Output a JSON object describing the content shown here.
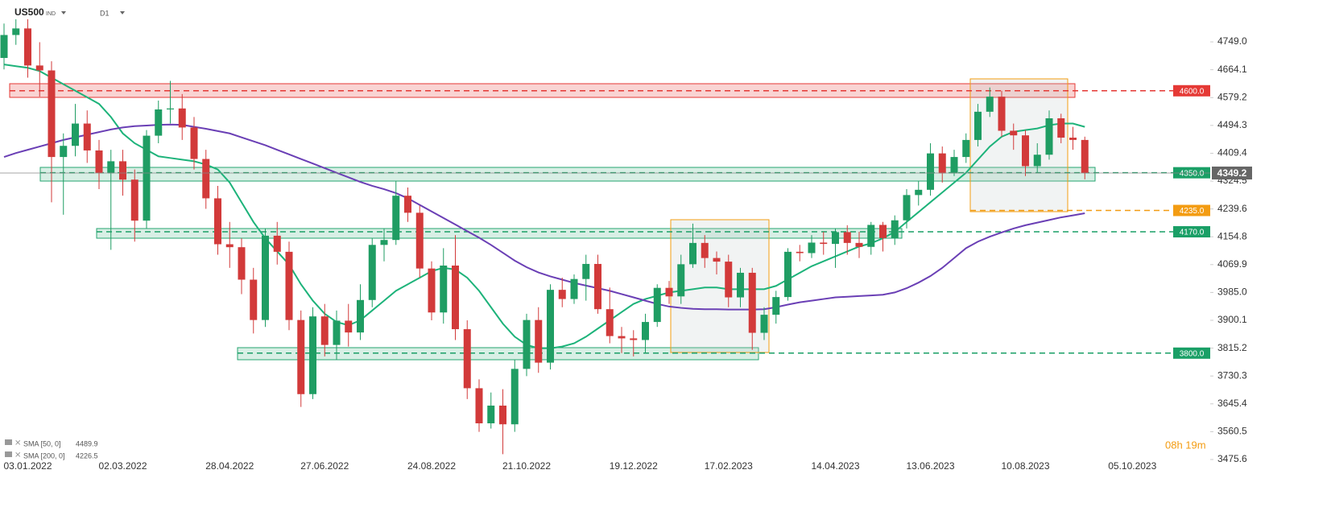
{
  "header": {
    "symbol": "US500",
    "kind": "IND",
    "interval": "D1"
  },
  "timer": "08h 19m",
  "chart_data": {
    "type": "candlestick",
    "categories": [
      null,
      null,
      "03.01.2022",
      null,
      null,
      null,
      null,
      null,
      null,
      null,
      "02.03.2022",
      null,
      null,
      null,
      null,
      null,
      null,
      null,
      null,
      "28.04.2022",
      null,
      null,
      null,
      null,
      null,
      null,
      null,
      "27.06.2022",
      null,
      null,
      null,
      null,
      null,
      null,
      null,
      null,
      "24.08.2022",
      null,
      null,
      null,
      null,
      null,
      null,
      null,
      "21.10.2022",
      null,
      null,
      null,
      null,
      null,
      null,
      null,
      null,
      "19.12.2022",
      null,
      null,
      null,
      null,
      null,
      null,
      null,
      "17.02.2023",
      null,
      null,
      null,
      null,
      null,
      null,
      null,
      null,
      "14.04.2023",
      null,
      null,
      null,
      null,
      null,
      null,
      null,
      "13.06.2023",
      null,
      null,
      null,
      null,
      null,
      null,
      null,
      "10.08.2023",
      null,
      null,
      null,
      null,
      null,
      null,
      null,
      null,
      "05.10.2023"
    ],
    "up_color": "#1f9d63",
    "down_color": "#d23a3a",
    "candles": {
      "open": [
        4700,
        4770,
        4790,
        4677,
        4662,
        4398,
        4432,
        4500,
        4418,
        4349,
        4385,
        4329,
        4204,
        4463,
        4543,
        4546,
        4488,
        4392,
        4272,
        4132,
        4123,
        4024,
        3901,
        4158,
        4109,
        3901,
        3675,
        3912,
        3825,
        3899,
        3863,
        3962,
        4130,
        4145,
        4280,
        4228,
        4058,
        3924,
        4067,
        3873,
        3693,
        3586,
        3640,
        3583,
        3752,
        3901,
        3771,
        3993,
        3965,
        4026,
        4072,
        3934,
        3852,
        3845,
        3840,
        3895,
        3999,
        3973,
        4071,
        4136,
        4090,
        4079,
        3970,
        4045,
        3862,
        3917,
        3971,
        4109,
        4105,
        4137,
        4133,
        4169,
        4136,
        4124,
        4191,
        4151,
        4205,
        4282,
        4298,
        4409,
        4348,
        4398,
        4450,
        4536,
        4582,
        4478,
        4464,
        4370,
        4405,
        4516,
        4457,
        4450,
        null,
        null,
        null,
        null
      ],
      "high": [
        4805,
        4818,
        4818,
        4748,
        4690,
        4470,
        4560,
        4540,
        4450,
        4420,
        4420,
        4360,
        4480,
        4570,
        4630,
        4590,
        4520,
        4420,
        4310,
        4200,
        4150,
        4060,
        4180,
        4200,
        4140,
        3930,
        3940,
        3950,
        3930,
        3950,
        4010,
        4150,
        4180,
        4325,
        4305,
        4250,
        4080,
        4120,
        4160,
        3900,
        3720,
        3680,
        3690,
        3780,
        3920,
        3940,
        4010,
        4030,
        4040,
        4100,
        4100,
        4000,
        3880,
        3870,
        3920,
        4010,
        4020,
        4100,
        4195,
        4160,
        4110,
        4100,
        4060,
        4060,
        3940,
        3990,
        4120,
        4130,
        4160,
        4170,
        4180,
        4190,
        4170,
        4200,
        4200,
        4220,
        4300,
        4325,
        4440,
        4430,
        4420,
        4470,
        4560,
        4610,
        4600,
        4500,
        4480,
        4440,
        4540,
        4530,
        4490,
        4460,
        null,
        null,
        null,
        null
      ],
      "low": [
        4665,
        4740,
        4640,
        4582,
        4260,
        4222,
        4400,
        4380,
        4300,
        4115,
        4280,
        4140,
        4180,
        4440,
        4500,
        4450,
        4360,
        4240,
        4100,
        4060,
        3980,
        3860,
        3880,
        4070,
        3870,
        3636,
        3660,
        3790,
        3780,
        3820,
        3840,
        3940,
        4080,
        4130,
        4200,
        4030,
        3900,
        3890,
        3840,
        3660,
        3560,
        3570,
        3492,
        3560,
        3730,
        3740,
        3750,
        3940,
        3950,
        3960,
        3920,
        3830,
        3800,
        3790,
        3800,
        3880,
        3950,
        3950,
        4060,
        4060,
        4040,
        3940,
        3940,
        3810,
        3840,
        3890,
        3960,
        4080,
        4090,
        4100,
        4060,
        4100,
        4090,
        4100,
        4110,
        4130,
        4180,
        4250,
        4280,
        4320,
        4340,
        4380,
        4430,
        4520,
        4460,
        4420,
        4340,
        4350,
        4390,
        4440,
        4420,
        4330,
        null,
        null,
        null,
        null
      ],
      "close": [
        4770,
        4790,
        4677,
        4662,
        4398,
        4432,
        4500,
        4418,
        4349,
        4385,
        4329,
        4204,
        4463,
        4543,
        4546,
        4488,
        4392,
        4272,
        4132,
        4123,
        4024,
        3901,
        4158,
        4109,
        3901,
        3675,
        3912,
        3825,
        3899,
        3863,
        3962,
        4130,
        4145,
        4280,
        4228,
        4058,
        3924,
        4067,
        3873,
        3693,
        3586,
        3640,
        3583,
        3752,
        3901,
        3771,
        3993,
        3965,
        4026,
        4072,
        3934,
        3852,
        3845,
        3840,
        3895,
        3999,
        3973,
        4071,
        4136,
        4090,
        4079,
        3970,
        4045,
        3862,
        3917,
        3971,
        4109,
        4105,
        4137,
        4133,
        4169,
        4136,
        4124,
        4191,
        4151,
        4205,
        4282,
        4298,
        4409,
        4348,
        4398,
        4450,
        4536,
        4582,
        4478,
        4464,
        4370,
        4405,
        4516,
        4457,
        4450,
        4349.2,
        null,
        null,
        null,
        null
      ]
    },
    "series": [
      {
        "name": "SMA [50, 0]",
        "color": "#1db37a",
        "values": [
          4680,
          4675,
          4670,
          4660,
          4640,
          4620,
          4600,
          4580,
          4560,
          4520,
          4470,
          4440,
          4420,
          4400,
          4395,
          4390,
          4385,
          4375,
          4360,
          4320,
          4260,
          4200,
          4150,
          4110,
          4070,
          4010,
          3960,
          3920,
          3895,
          3885,
          3900,
          3930,
          3960,
          3990,
          4010,
          4030,
          4050,
          4060,
          4055,
          4030,
          3990,
          3940,
          3890,
          3850,
          3825,
          3815,
          3815,
          3820,
          3830,
          3850,
          3875,
          3900,
          3925,
          3950,
          3965,
          3975,
          3985,
          3990,
          3995,
          4000,
          4000,
          3995,
          3995,
          3995,
          3995,
          4005,
          4025,
          4045,
          4065,
          4080,
          4095,
          4110,
          4125,
          4135,
          4150,
          4170,
          4200,
          4230,
          4260,
          4290,
          4320,
          4350,
          4390,
          4430,
          4460,
          4475,
          4480,
          4485,
          4495,
          4500,
          4500,
          4489.9,
          null,
          null,
          null,
          null
        ]
      },
      {
        "name": "SMA [200, 0]",
        "color": "#6a3fb5",
        "values": [
          4398,
          4410,
          4420,
          4430,
          4440,
          4450,
          4458,
          4466,
          4474,
          4482,
          4488,
          4492,
          4494,
          4496,
          4497,
          4496,
          4490,
          4484,
          4477,
          4470,
          4458,
          4446,
          4434,
          4420,
          4406,
          4392,
          4378,
          4364,
          4350,
          4336,
          4322,
          4310,
          4300,
          4288,
          4272,
          4252,
          4232,
          4212,
          4192,
          4172,
          4152,
          4130,
          4106,
          4082,
          4062,
          4046,
          4034,
          4024,
          4014,
          4006,
          3998,
          3990,
          3980,
          3970,
          3960,
          3950,
          3942,
          3938,
          3935,
          3934,
          3934,
          3933,
          3933,
          3933,
          3934,
          3940,
          3948,
          3955,
          3960,
          3965,
          3970,
          3972,
          3974,
          3976,
          3978,
          3985,
          3998,
          4015,
          4035,
          4060,
          4090,
          4120,
          4140,
          4155,
          4168,
          4180,
          4190,
          4198,
          4206,
          4214,
          4220,
          4226.5,
          null,
          null,
          null,
          null
        ]
      }
    ],
    "levels": [
      {
        "value": 4600,
        "label": "4600.0",
        "color": "#e53935"
      },
      {
        "value": 4350,
        "label": "4350.0",
        "color": "#1a9f66"
      },
      {
        "value": 4235,
        "label": "4235.0",
        "color": "#f39c12"
      },
      {
        "value": 4170,
        "label": "4170.0",
        "color": "#1a9f66"
      },
      {
        "value": 3800,
        "label": "3800.0",
        "color": "#1a9f66"
      }
    ],
    "ylim": [
      3429,
      4808
    ],
    "yticks": [
      {
        "value": 4749,
        "label": "4749.0"
      },
      4664.1,
      4579.2,
      4494.3,
      4409.4,
      4324.5,
      4239.6,
      4154.8,
      4069.9,
      {
        "value": 3985,
        "label": "3985.0"
      },
      3900.1,
      3815.2,
      3730.3,
      3645.4,
      3560.5,
      3475.6
    ]
  }
}
